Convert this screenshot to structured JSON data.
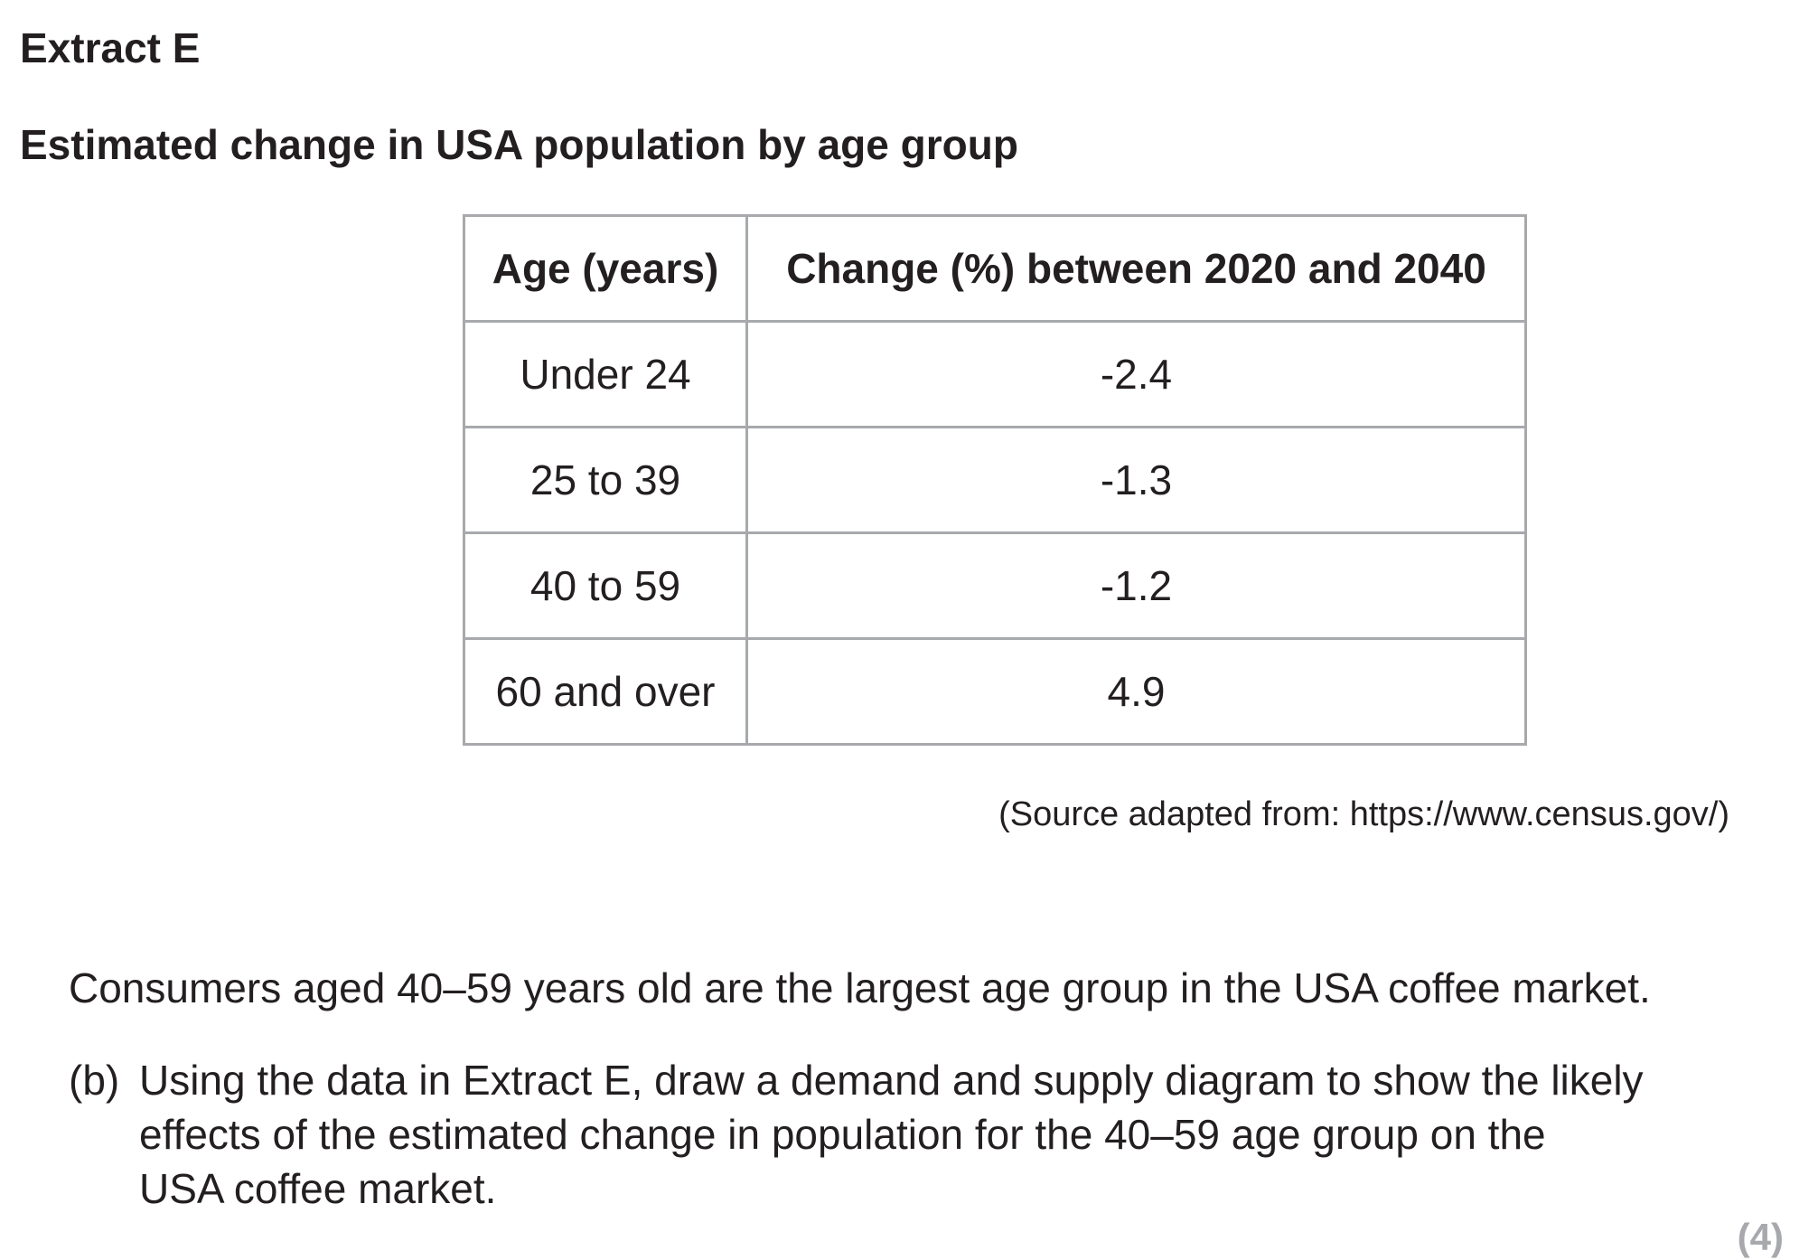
{
  "extract": {
    "label": "Extract E",
    "title": "Estimated change in USA population by age group"
  },
  "table": {
    "headers": [
      "Age (years)",
      "Change (%) between 2020 and 2040"
    ],
    "rows": [
      [
        "Under 24",
        "-2.4"
      ],
      [
        "25 to 39",
        "-1.3"
      ],
      [
        "40 to 59",
        "-1.2"
      ],
      [
        "60 and over",
        "4.9"
      ]
    ]
  },
  "source": "(Source adapted from: https://www.census.gov/)",
  "statement": "Consumers aged 40–59 years old are the largest age group in the USA coffee market.",
  "question": {
    "label": "(b)",
    "line1": "Using the data in Extract E, draw a demand and supply diagram to show the likely",
    "line2": "effects of the estimated change in population for the 40–59 age group on the",
    "line3": "USA coffee market.",
    "marks": "(4)"
  }
}
